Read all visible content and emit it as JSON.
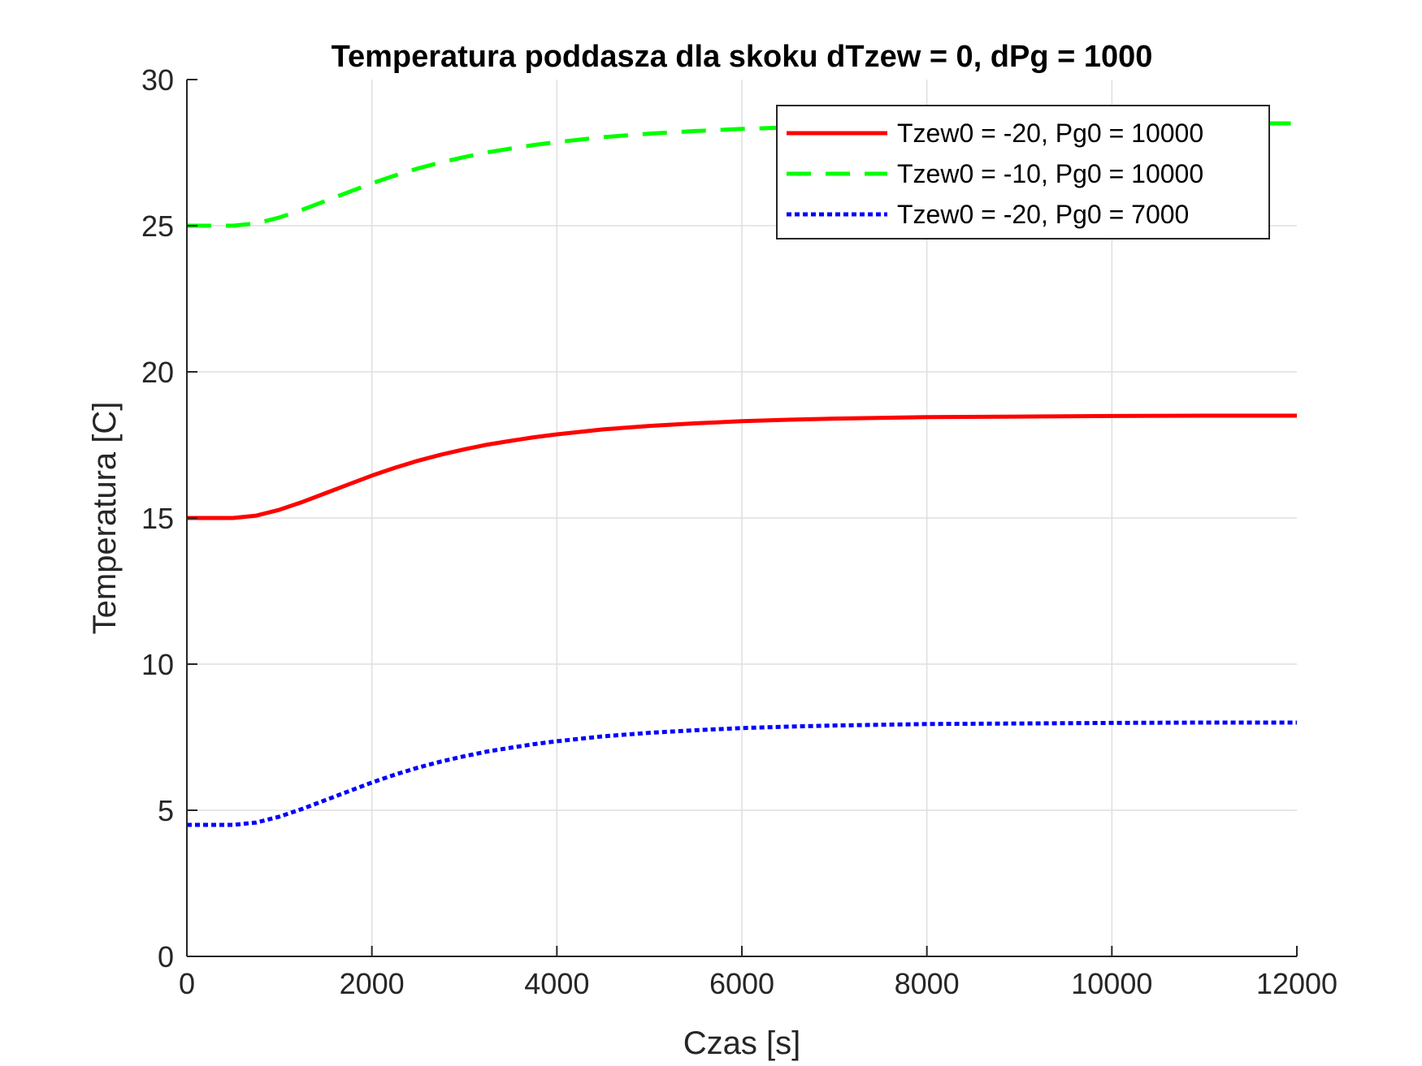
{
  "chart_data": {
    "type": "line",
    "title": "Temperatura poddasza dla skoku dTzew = 0, dPg = 1000",
    "xlabel": "Czas [s]",
    "ylabel": "Temperatura [C]",
    "xlim": [
      0,
      12000
    ],
    "ylim": [
      0,
      30
    ],
    "xticks": [
      0,
      2000,
      4000,
      6000,
      8000,
      10000,
      12000
    ],
    "yticks": [
      0,
      5,
      10,
      15,
      20,
      25,
      30
    ],
    "xtick_labels": [
      "0",
      "2000",
      "4000",
      "6000",
      "8000",
      "10000",
      "12000"
    ],
    "ytick_labels": [
      "0",
      "5",
      "10",
      "15",
      "20",
      "25",
      "30"
    ],
    "grid": true,
    "legend_position": "top-right",
    "x": [
      0,
      500,
      750,
      1000,
      1250,
      1500,
      1750,
      2000,
      2250,
      2500,
      2750,
      3000,
      3250,
      3500,
      3750,
      4000,
      4500,
      5000,
      5500,
      6000,
      6500,
      7000,
      8000,
      9000,
      10000,
      11000,
      12000
    ],
    "series": [
      {
        "name": "Tzew0 = -20, Pg0 = 10000",
        "color": "#ff0000",
        "style": "solid",
        "values": [
          15.0,
          15.0,
          15.08,
          15.28,
          15.55,
          15.85,
          16.15,
          16.45,
          16.72,
          16.96,
          17.17,
          17.35,
          17.51,
          17.64,
          17.76,
          17.86,
          18.03,
          18.15,
          18.24,
          18.31,
          18.36,
          18.4,
          18.45,
          18.47,
          18.49,
          18.5,
          18.5
        ]
      },
      {
        "name": "Tzew0 = -10, Pg0 = 10000",
        "color": "#00ff00",
        "style": "dashed",
        "values": [
          25.0,
          25.0,
          25.08,
          25.28,
          25.55,
          25.85,
          26.15,
          26.45,
          26.72,
          26.96,
          27.17,
          27.35,
          27.51,
          27.64,
          27.76,
          27.86,
          28.03,
          28.15,
          28.24,
          28.31,
          28.36,
          28.4,
          28.45,
          28.47,
          28.49,
          28.5,
          28.5
        ]
      },
      {
        "name": "Tzew0 = -20, Pg0 = 7000",
        "color": "#0000ff",
        "style": "dotted",
        "values": [
          4.5,
          4.5,
          4.58,
          4.78,
          5.05,
          5.35,
          5.65,
          5.95,
          6.22,
          6.46,
          6.67,
          6.85,
          7.01,
          7.14,
          7.26,
          7.36,
          7.53,
          7.65,
          7.74,
          7.81,
          7.86,
          7.9,
          7.95,
          7.97,
          7.99,
          8.0,
          8.0
        ]
      }
    ]
  }
}
